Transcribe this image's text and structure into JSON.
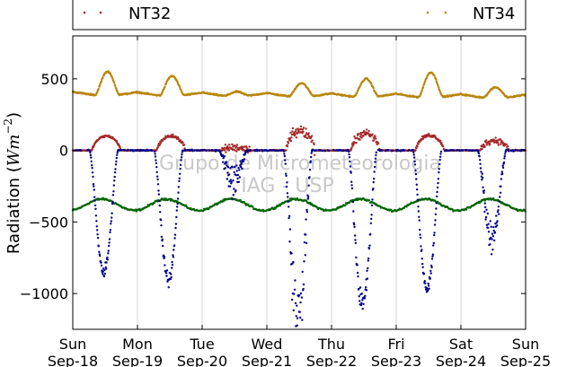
{
  "chart_data": {
    "type": "scatter",
    "title": "",
    "xlabel": "",
    "ylabel": "Radiation (Wm^-2)",
    "ylabel_parts": {
      "prefix": "Radiation (",
      "unit_base": "Wm",
      "unit_exp": "−2",
      "suffix": ")"
    },
    "watermark": [
      "Grupo de Micrometeorologia",
      "IAG - USP"
    ],
    "xlim_days": [
      "Sep-18",
      "Sep-25"
    ],
    "ylim": [
      -1250,
      800
    ],
    "yticks": [
      -1000,
      -500,
      0,
      500
    ],
    "ytick_labels": [
      "−1000",
      "−500",
      "0",
      "500"
    ],
    "xticks": [
      {
        "day": "Sun",
        "date": "Sep-18"
      },
      {
        "day": "Mon",
        "date": "Sep-19"
      },
      {
        "day": "Tue",
        "date": "Sep-20"
      },
      {
        "day": "Wed",
        "date": "Sep-21"
      },
      {
        "day": "Thu",
        "date": "Sep-22"
      },
      {
        "day": "Fri",
        "date": "Sep-23"
      },
      {
        "day": "Sat",
        "date": "Sep-24"
      },
      {
        "day": "Sun",
        "date": "Sep-25"
      }
    ],
    "grid": {
      "x": true,
      "y": false
    },
    "legend": {
      "placement": "top",
      "entries": [
        {
          "label": "NT32",
          "color": "#a52a2a"
        },
        {
          "label": "NT34",
          "color": "#b8860b"
        }
      ]
    },
    "series": [
      {
        "name": "NT32",
        "color": "#a52a2a",
        "baseline": 0,
        "daily_peak": [
          100,
          100,
          20,
          135,
          120,
          105,
          70
        ],
        "noise": [
          6,
          10,
          22,
          35,
          25,
          10,
          20
        ]
      },
      {
        "name": "NT34",
        "color": "#b8860b",
        "baseline_start": 410,
        "baseline_end": 390,
        "daily_peak": [
          550,
          520,
          410,
          470,
          500,
          545,
          440
        ]
      },
      {
        "name": "",
        "color": "#00008b",
        "baseline": 0,
        "daily_min": [
          -860,
          -920,
          -200,
          -1170,
          -1080,
          -970,
          -600
        ],
        "noise": [
          40,
          50,
          100,
          220,
          80,
          40,
          120
        ]
      },
      {
        "name": "",
        "color": "#006400",
        "baseline": -380,
        "wave_amplitude": 40
      }
    ]
  }
}
